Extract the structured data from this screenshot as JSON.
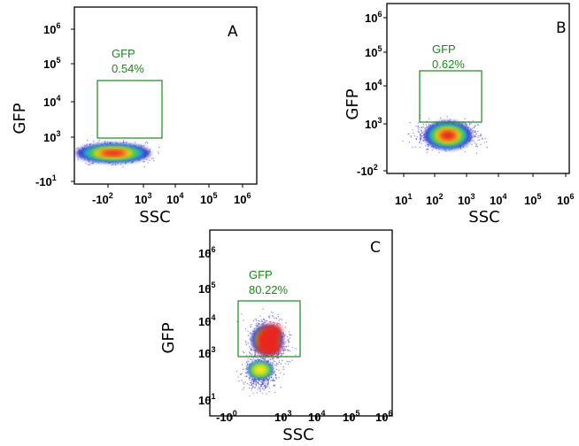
{
  "colors": {
    "gate": "#1a8a1a",
    "axis": "#000000",
    "density_low": "#3b39c8",
    "density_mid": "#18b0e0",
    "density_green": "#46c33c",
    "density_yellow": "#f2e61c",
    "density_orange": "#f59e1a",
    "density_high": "#e8281e"
  },
  "chart_data": [
    {
      "type": "scatter",
      "panel_label": "A",
      "xlabel": "SSC",
      "ylabel": "GFP",
      "x_ticks": [
        {
          "base": "-10",
          "exp": "2"
        },
        {
          "base": "10",
          "exp": "3"
        },
        {
          "base": "10",
          "exp": "4"
        },
        {
          "base": "10",
          "exp": "5"
        },
        {
          "base": "10",
          "exp": "6"
        }
      ],
      "y_ticks": [
        {
          "base": "-10",
          "exp": "1"
        },
        {
          "base": "10",
          "exp": "3"
        },
        {
          "base": "10",
          "exp": "4"
        },
        {
          "base": "10",
          "exp": "5"
        },
        {
          "base": "10",
          "exp": "6"
        }
      ],
      "gate": {
        "name": "GFP",
        "percent": "0.54%",
        "x_range": [
          200,
          7000
        ],
        "y_range": [
          1000,
          40000
        ]
      },
      "population": {
        "center_x": 400,
        "center_y": 500
      }
    },
    {
      "type": "scatter",
      "panel_label": "B",
      "xlabel": "SSC",
      "ylabel": "GFP",
      "x_ticks": [
        {
          "base": "10",
          "exp": "1"
        },
        {
          "base": "10",
          "exp": "2"
        },
        {
          "base": "10",
          "exp": "3"
        },
        {
          "base": "10",
          "exp": "4"
        },
        {
          "base": "10",
          "exp": "5"
        },
        {
          "base": "10",
          "exp": "6"
        }
      ],
      "y_ticks": [
        {
          "base": "-10",
          "exp": "2"
        },
        {
          "base": "10",
          "exp": "3"
        },
        {
          "base": "10",
          "exp": "4"
        },
        {
          "base": "10",
          "exp": "5"
        },
        {
          "base": "10",
          "exp": "6"
        }
      ],
      "gate": {
        "name": "GFP",
        "percent": "0.62%",
        "x_range": [
          100,
          6000
        ],
        "y_range": [
          1000,
          40000
        ]
      },
      "population": {
        "center_x": 650,
        "center_y": 350
      }
    },
    {
      "type": "scatter",
      "panel_label": "C",
      "xlabel": "SSC",
      "ylabel": "GFP",
      "x_ticks": [
        {
          "base": "-10",
          "exp": "0"
        },
        {
          "base": "10",
          "exp": "3"
        },
        {
          "base": "10",
          "exp": "4"
        },
        {
          "base": "10",
          "exp": "5"
        },
        {
          "base": "10",
          "exp": "6"
        }
      ],
      "y_ticks": [
        {
          "base": "10",
          "exp": "1"
        },
        {
          "base": "10",
          "exp": "3"
        },
        {
          "base": "10",
          "exp": "4"
        },
        {
          "base": "10",
          "exp": "5"
        },
        {
          "base": "10",
          "exp": "6"
        }
      ],
      "gate": {
        "name": "GFP",
        "percent": "80.22%",
        "x_range": [
          150,
          6000
        ],
        "y_range": [
          1000,
          40000
        ]
      },
      "population": {
        "center_x": 650,
        "center_y": 2500
      }
    }
  ]
}
